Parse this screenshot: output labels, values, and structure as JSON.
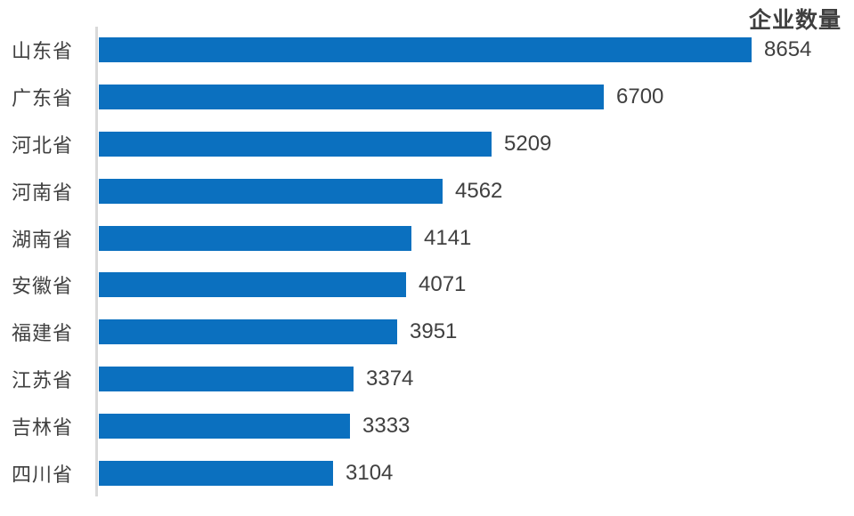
{
  "chart_data": {
    "type": "bar",
    "orientation": "horizontal",
    "title": "企业数量",
    "categories": [
      "山东省",
      "广东省",
      "河北省",
      "河南省",
      "湖南省",
      "安徽省",
      "福建省",
      "江苏省",
      "吉林省",
      "四川省"
    ],
    "values": [
      8654,
      6700,
      5209,
      4562,
      4141,
      4071,
      3951,
      3374,
      3333,
      3104
    ],
    "value_labels_position": "outside-end",
    "sort_order": "descending-top-to-bottom",
    "grid": false,
    "legend": "none",
    "x_axis_ticks": "none",
    "xlim": [
      0,
      8654
    ],
    "colors": {
      "bar": "#0b70bf",
      "value_text": "#404040",
      "category_text": "#404040",
      "title_text": "#3f3f3f",
      "axis_line": "#d9d9d9",
      "background": "#ffffff"
    }
  }
}
